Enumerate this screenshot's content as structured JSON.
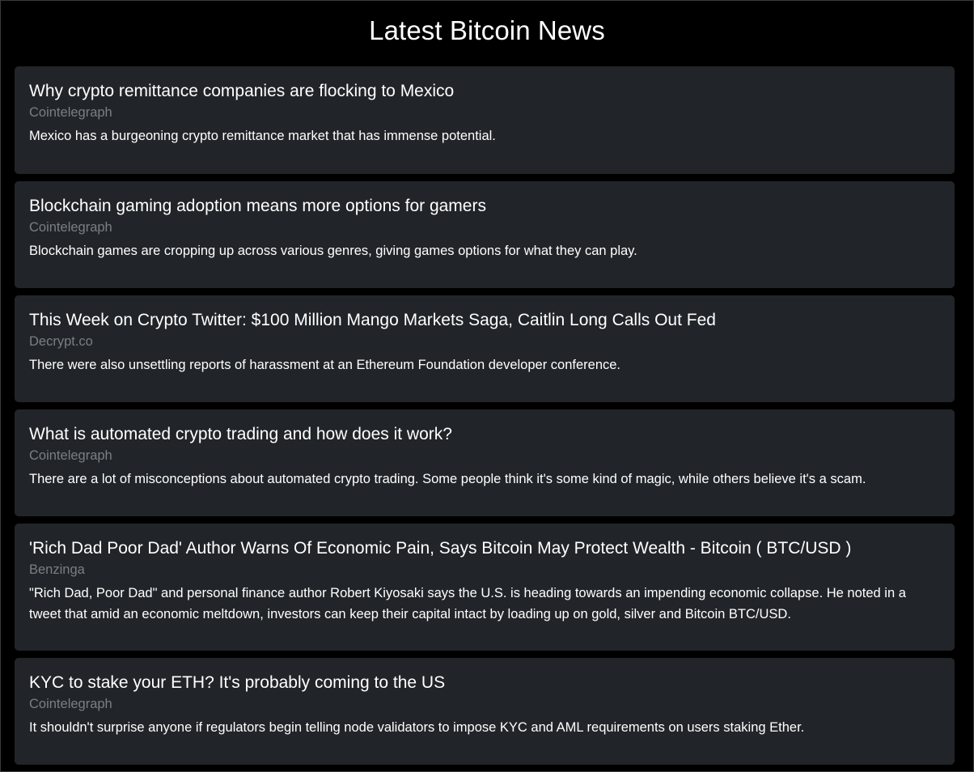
{
  "page": {
    "title": "Latest Bitcoin News"
  },
  "colors": {
    "background": "#000000",
    "card_background": "#212529",
    "title_text": "#ffffff",
    "source_text": "#7b7f85",
    "description_text": "#ffffff"
  },
  "articles": [
    {
      "title": "Why crypto remittance companies are flocking to Mexico",
      "source": "Cointelegraph",
      "description": "Mexico has a burgeoning crypto remittance market that has immense potential."
    },
    {
      "title": "Blockchain gaming adoption means more options for gamers",
      "source": "Cointelegraph",
      "description": "Blockchain games are cropping up across various genres, giving games options for what they can play."
    },
    {
      "title": "This Week on Crypto Twitter: $100 Million Mango Markets Saga, Caitlin Long Calls Out Fed",
      "source": "Decrypt.co",
      "description": "There were also unsettling reports of harassment at an Ethereum Foundation developer conference."
    },
    {
      "title": "What is automated crypto trading and how does it work?",
      "source": "Cointelegraph",
      "description": "There are a lot of misconceptions about automated crypto trading. Some people think it's some kind of magic, while others believe it's a scam."
    },
    {
      "title": "'Rich Dad Poor Dad' Author Warns Of Economic Pain, Says Bitcoin May Protect Wealth - Bitcoin ( BTC/USD )",
      "source": "Benzinga",
      "description": "\"Rich Dad, Poor Dad\" and personal finance author Robert Kiyosaki says the U.S. is heading towards an impending economic collapse. He noted in a tweet that amid an economic meltdown, investors can keep their capital intact by loading up on gold, silver and Bitcoin BTC/USD."
    },
    {
      "title": "KYC to stake your ETH? It's probably coming to the US",
      "source": "Cointelegraph",
      "description": "It shouldn't surprise anyone if regulators begin telling node validators to impose KYC and AML requirements on users staking Ether."
    }
  ]
}
